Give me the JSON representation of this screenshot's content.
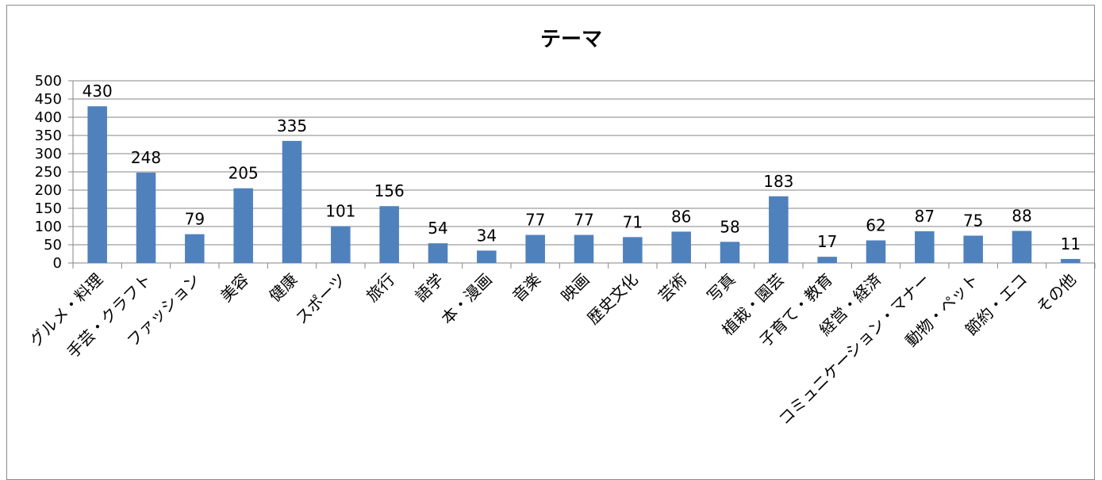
{
  "chart_data": {
    "type": "bar",
    "title": "テーマ",
    "categories": [
      "グルメ・料理",
      "手芸・クラフト",
      "ファッション",
      "美容",
      "健康",
      "スポーツ",
      "旅行",
      "語学",
      "本・漫画",
      "音楽",
      "映画",
      "歴史文化",
      "芸術",
      "写真",
      "植栽・園芸",
      "子育て・教育",
      "経営・経済",
      "コミュニケーション・マナー",
      "動物・ペット",
      "節約・エコ",
      "その他"
    ],
    "values": [
      430,
      248,
      79,
      205,
      335,
      101,
      156,
      54,
      34,
      77,
      77,
      71,
      86,
      58,
      183,
      17,
      62,
      87,
      75,
      88,
      11
    ],
    "yticks": [
      0,
      50,
      100,
      150,
      200,
      250,
      300,
      350,
      400,
      450,
      500
    ],
    "ylim": [
      0,
      500
    ],
    "xlabel": "",
    "ylabel": "",
    "grid": true,
    "legend": "none",
    "colors": {
      "bar": "#4f81bd",
      "grid": "#868686"
    }
  }
}
